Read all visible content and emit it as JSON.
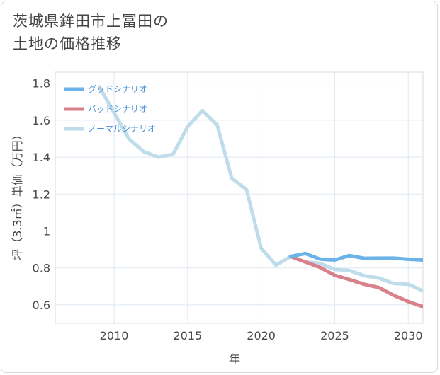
{
  "title_line1": "茨城県鉾田市上冨田の",
  "title_line2": "土地の価格推移",
  "chart_data": {
    "type": "line",
    "xlabel": "年",
    "ylabel": "坪（3.3㎡）単価（万円）",
    "xlim": [
      2006,
      2031
    ],
    "ylim": [
      0.5,
      1.86
    ],
    "xticks": [
      2010,
      2015,
      2020,
      2025,
      2030
    ],
    "yticks": [
      0.6,
      0.8,
      1,
      1.2,
      1.4,
      1.6,
      1.8
    ],
    "ytick_labels": [
      "0.6",
      "0.8",
      "1",
      "1.2",
      "1.4",
      "1.6",
      "1.8"
    ],
    "grid": true,
    "legend_position": "top-left",
    "series": [
      {
        "name": "グッドシナリオ",
        "color": "#6cb4e8",
        "x": [
          2022,
          2023,
          2024,
          2025,
          2026,
          2027,
          2028,
          2029,
          2030,
          2031
        ],
        "y": [
          0.862,
          0.878,
          0.848,
          0.843,
          0.867,
          0.852,
          0.853,
          0.853,
          0.847,
          0.843
        ]
      },
      {
        "name": "バッドシナリオ",
        "color": "#d9818b",
        "x": [
          2022,
          2023,
          2024,
          2025,
          2026,
          2027,
          2028,
          2029,
          2030,
          2031
        ],
        "y": [
          0.862,
          0.832,
          0.803,
          0.76,
          0.737,
          0.712,
          0.694,
          0.652,
          0.618,
          0.59
        ]
      },
      {
        "name": "ノーマルシナリオ",
        "color": "#bfdcea",
        "x": [
          2009,
          2010,
          2011,
          2012,
          2013,
          2014,
          2015,
          2016,
          2017,
          2018,
          2019,
          2020,
          2021,
          2022,
          2023,
          2024,
          2025,
          2026,
          2027,
          2028,
          2029,
          2030,
          2031
        ],
        "y": [
          1.78,
          1.64,
          1.5,
          1.43,
          1.4,
          1.415,
          1.565,
          1.652,
          1.575,
          1.285,
          1.225,
          0.907,
          0.815,
          0.862,
          0.832,
          0.825,
          0.792,
          0.786,
          0.758,
          0.745,
          0.716,
          0.712,
          0.676
        ]
      }
    ]
  }
}
